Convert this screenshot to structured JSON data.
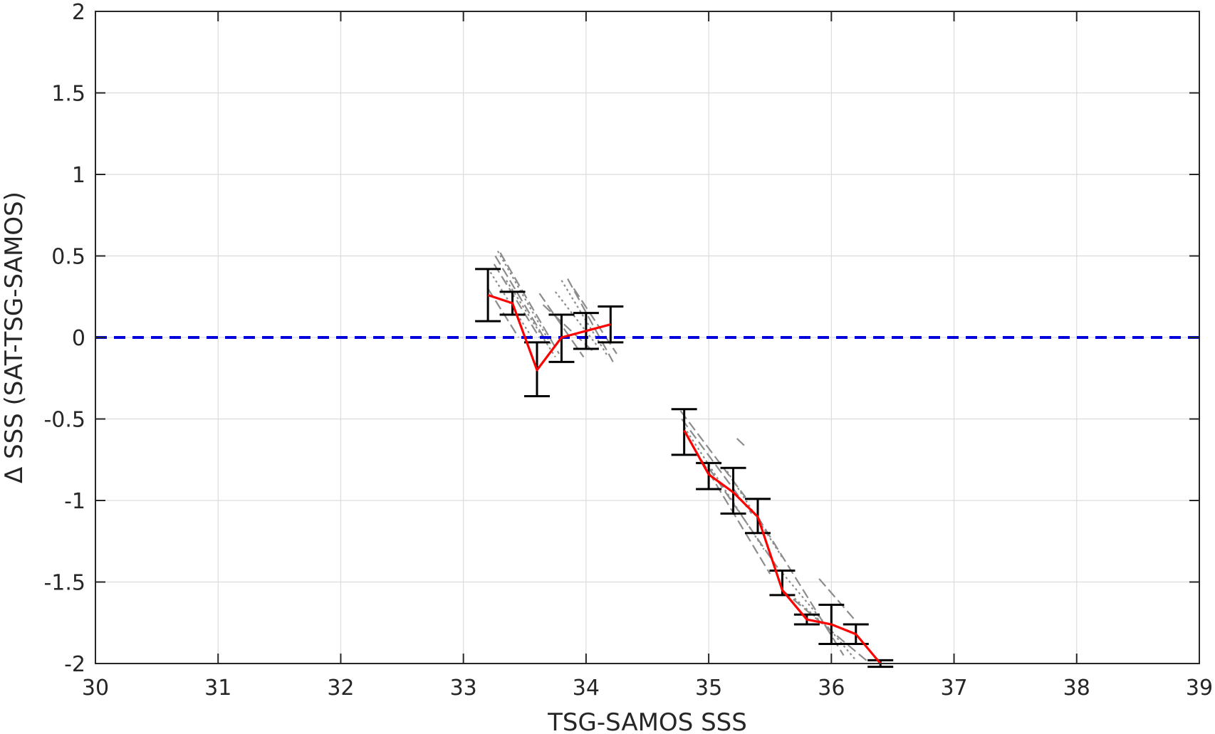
{
  "chart_data": {
    "type": "line",
    "title": "",
    "xlabel": "TSG-SAMOS SSS",
    "ylabel": "Δ SSS (SAT-TSG-SAMOS)",
    "xlim": [
      30,
      39
    ],
    "ylim": [
      -2,
      2
    ],
    "xticks": [
      30,
      31,
      32,
      33,
      34,
      35,
      36,
      37,
      38,
      39
    ],
    "yticks": [
      -2,
      -1.5,
      -1,
      -0.5,
      0,
      0.5,
      1,
      1.5,
      2
    ],
    "xtick_labels": [
      "30",
      "31",
      "32",
      "33",
      "34",
      "35",
      "36",
      "37",
      "38",
      "39"
    ],
    "ytick_labels": [
      "-2",
      "-1.5",
      "-1",
      "-0.5",
      "0",
      "0.5",
      "1",
      "1.5",
      "2"
    ],
    "grid": true,
    "colors": {
      "mean_line": "#ff0000",
      "error_bars": "#000000",
      "zero_line": "#0000dd",
      "individual_lines": "#8c8c8c",
      "grid": "#dcdcdc"
    },
    "reference_line": {
      "y": 0,
      "style": "dashed"
    },
    "series": [
      {
        "type": "errorbar_line",
        "x": [
          33.2,
          33.4,
          33.6,
          33.8,
          34.0,
          34.2
        ],
        "y": [
          0.26,
          0.21,
          -0.2,
          0.0,
          0.04,
          0.08
        ],
        "upper": [
          0.42,
          0.28,
          -0.03,
          0.14,
          0.15,
          0.19
        ],
        "lower": [
          0.1,
          0.14,
          -0.36,
          -0.15,
          -0.07,
          -0.03
        ]
      },
      {
        "type": "errorbar_line",
        "x": [
          34.8,
          35.0,
          35.2,
          35.4,
          35.6,
          35.8,
          36.0,
          36.2,
          36.4
        ],
        "y": [
          -0.57,
          -0.84,
          -0.95,
          -1.1,
          -1.55,
          -1.73,
          -1.76,
          -1.82,
          -2.0
        ],
        "upper": [
          -0.44,
          -0.77,
          -0.8,
          -0.99,
          -1.43,
          -1.7,
          -1.64,
          -1.76,
          -1.98
        ],
        "lower": [
          -0.72,
          -0.93,
          -1.08,
          -1.2,
          -1.58,
          -1.76,
          -1.88,
          -1.88,
          -2.02
        ]
      }
    ],
    "individual_lines": [
      {
        "x": [
          33.28,
          33.72
        ],
        "y": [
          0.53,
          -0.05
        ]
      },
      {
        "x": [
          33.26,
          33.68
        ],
        "y": [
          0.5,
          -0.03
        ]
      },
      {
        "x": [
          33.25,
          33.62
        ],
        "y": [
          0.45,
          0.0
        ]
      },
      {
        "x": [
          33.22,
          33.55
        ],
        "y": [
          0.4,
          0.01
        ]
      },
      {
        "x": [
          33.2,
          33.45
        ],
        "y": [
          0.3,
          -0.0
        ]
      },
      {
        "x": [
          33.3,
          33.78
        ],
        "y": [
          0.52,
          -0.1
        ]
      },
      {
        "x": [
          33.35,
          33.75
        ],
        "y": [
          0.35,
          -0.12
        ]
      },
      {
        "x": [
          33.62,
          33.98
        ],
        "y": [
          0.27,
          -0.12
        ]
      },
      {
        "x": [
          33.65,
          34.05
        ],
        "y": [
          0.2,
          -0.08
        ]
      },
      {
        "x": [
          33.8,
          34.18
        ],
        "y": [
          0.35,
          -0.12
        ]
      },
      {
        "x": [
          33.85,
          34.22
        ],
        "y": [
          0.36,
          -0.15
        ]
      },
      {
        "x": [
          33.9,
          34.25
        ],
        "y": [
          0.3,
          -0.1
        ]
      },
      {
        "x": [
          33.75,
          34.1
        ],
        "y": [
          0.28,
          -0.06
        ]
      },
      {
        "x": [
          34.77,
          35.3
        ],
        "y": [
          -0.45,
          -0.98
        ]
      },
      {
        "x": [
          34.78,
          35.35
        ],
        "y": [
          -0.5,
          -1.08
        ]
      },
      {
        "x": [
          34.8,
          35.45
        ],
        "y": [
          -0.55,
          -1.3
        ]
      },
      {
        "x": [
          34.82,
          35.5
        ],
        "y": [
          -0.6,
          -1.45
        ]
      },
      {
        "x": [
          35.0,
          35.55
        ],
        "y": [
          -0.8,
          -1.4
        ]
      },
      {
        "x": [
          35.15,
          35.6
        ],
        "y": [
          -0.82,
          -1.35
        ]
      },
      {
        "x": [
          35.23,
          35.3
        ],
        "y": [
          -0.62,
          -0.67
        ]
      },
      {
        "x": [
          35.4,
          36.1
        ],
        "y": [
          -1.1,
          -1.95
        ]
      },
      {
        "x": [
          35.55,
          36.2
        ],
        "y": [
          -1.4,
          -1.98
        ]
      },
      {
        "x": [
          35.6,
          36.3
        ],
        "y": [
          -1.55,
          -1.99
        ]
      },
      {
        "x": [
          35.9,
          36.2
        ],
        "y": [
          -1.48,
          -1.74
        ]
      },
      {
        "x": [
          35.7,
          36.0
        ],
        "y": [
          -1.6,
          -1.8
        ]
      }
    ]
  }
}
